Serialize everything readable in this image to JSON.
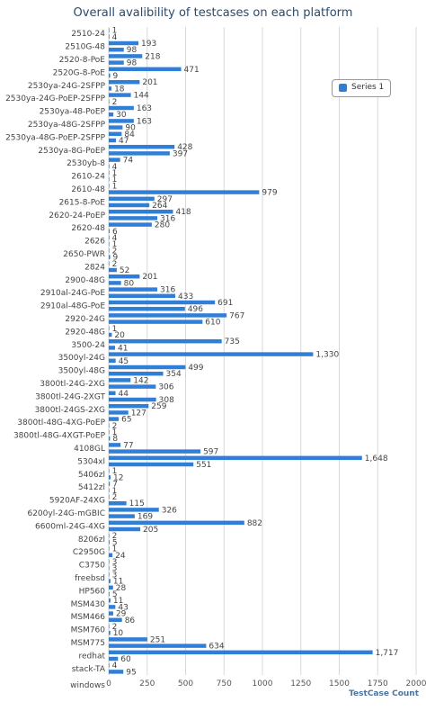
{
  "chart_data": {
    "type": "bar",
    "orientation": "horizontal",
    "title": "Overall avalibility of testcases on each platform",
    "xlabel": "TestCase Count",
    "xlim": [
      0,
      2000
    ],
    "x_ticks": [
      "0",
      "250",
      "500",
      "750",
      "1000",
      "1250",
      "1500",
      "1750",
      "2000"
    ],
    "grid": true,
    "legend_position": "top-right",
    "series": [
      {
        "name": "Series 1",
        "color": "#2f7ed8",
        "bars": [
          {
            "v": 1,
            "l": "1"
          },
          {
            "v": 4,
            "l": "4"
          },
          {
            "v": 193,
            "l": "193"
          },
          {
            "v": 98,
            "l": "98"
          },
          {
            "v": 218,
            "l": "218"
          },
          {
            "v": 98,
            "l": "98"
          },
          {
            "v": 471,
            "l": "471"
          },
          {
            "v": 9,
            "l": "9"
          },
          {
            "v": 201,
            "l": "201"
          },
          {
            "v": 18,
            "l": "18"
          },
          {
            "v": 144,
            "l": "144"
          },
          {
            "v": 2,
            "l": "2"
          },
          {
            "v": 163,
            "l": "163"
          },
          {
            "v": 30,
            "l": "30"
          },
          {
            "v": 163,
            "l": "163"
          },
          {
            "v": 90,
            "l": "90"
          },
          {
            "v": 84,
            "l": "84"
          },
          {
            "v": 47,
            "l": "47"
          },
          {
            "v": 428,
            "l": "428"
          },
          {
            "v": 397,
            "l": "397"
          },
          {
            "v": 74,
            "l": "74"
          },
          {
            "v": 4,
            "l": "4"
          },
          {
            "v": 1,
            "l": "1"
          },
          {
            "v": 1,
            "l": "1"
          },
          {
            "v": 1,
            "l": "1"
          },
          {
            "v": 979,
            "l": "979"
          },
          {
            "v": 297,
            "l": "297"
          },
          {
            "v": 264,
            "l": "264"
          },
          {
            "v": 418,
            "l": "418"
          },
          {
            "v": 316,
            "l": "316"
          },
          {
            "v": 280,
            "l": "280"
          },
          {
            "v": 6,
            "l": "6"
          },
          {
            "v": 4,
            "l": "4"
          },
          {
            "v": 1,
            "l": "1"
          },
          {
            "v": 2,
            "l": "2"
          },
          {
            "v": 9,
            "l": "9"
          },
          {
            "v": 2,
            "l": "2"
          },
          {
            "v": 52,
            "l": "52"
          },
          {
            "v": 201,
            "l": "201"
          },
          {
            "v": 80,
            "l": "80"
          },
          {
            "v": 316,
            "l": "316"
          },
          {
            "v": 433,
            "l": "433"
          },
          {
            "v": 691,
            "l": "691"
          },
          {
            "v": 496,
            "l": "496"
          },
          {
            "v": 767,
            "l": "767"
          },
          {
            "v": 610,
            "l": "610"
          },
          {
            "v": 1,
            "l": "1"
          },
          {
            "v": 20,
            "l": "20"
          },
          {
            "v": 735,
            "l": "735"
          },
          {
            "v": 41,
            "l": "41"
          },
          {
            "v": 1330,
            "l": "1,330"
          },
          {
            "v": 45,
            "l": "45"
          },
          {
            "v": 499,
            "l": "499"
          },
          {
            "v": 354,
            "l": "354"
          },
          {
            "v": 142,
            "l": "142"
          },
          {
            "v": 306,
            "l": "306"
          },
          {
            "v": 44,
            "l": "44"
          },
          {
            "v": 308,
            "l": "308"
          },
          {
            "v": 259,
            "l": "259"
          },
          {
            "v": 127,
            "l": "127"
          },
          {
            "v": 65,
            "l": "65"
          },
          {
            "v": 2,
            "l": "2"
          },
          {
            "v": 1,
            "l": "1"
          },
          {
            "v": 8,
            "l": "8"
          },
          {
            "v": 77,
            "l": "77"
          },
          {
            "v": 597,
            "l": "597"
          },
          {
            "v": 1648,
            "l": "1,648"
          },
          {
            "v": 551,
            "l": "551"
          },
          {
            "v": 1,
            "l": "1"
          },
          {
            "v": 12,
            "l": "12"
          },
          {
            "v": 7,
            "l": "7"
          },
          {
            "v": 1,
            "l": "1"
          },
          {
            "v": 2,
            "l": "2"
          },
          {
            "v": 115,
            "l": "115"
          },
          {
            "v": 326,
            "l": "326"
          },
          {
            "v": 169,
            "l": "169"
          },
          {
            "v": 882,
            "l": "882"
          },
          {
            "v": 205,
            "l": "205"
          },
          {
            "v": 2,
            "l": "2"
          },
          {
            "v": 5,
            "l": "5"
          },
          {
            "v": 1,
            "l": "1"
          },
          {
            "v": 24,
            "l": "24"
          },
          {
            "v": 3,
            "l": "3"
          },
          {
            "v": 3,
            "l": "3"
          },
          {
            "v": 3,
            "l": "3"
          },
          {
            "v": 11,
            "l": "11"
          },
          {
            "v": 28,
            "l": "28"
          },
          {
            "v": 5,
            "l": "5"
          },
          {
            "v": 11,
            "l": "11"
          },
          {
            "v": 43,
            "l": "43"
          },
          {
            "v": 29,
            "l": "29"
          },
          {
            "v": 86,
            "l": "86"
          },
          {
            "v": 2,
            "l": "2"
          },
          {
            "v": 10,
            "l": "10"
          },
          {
            "v": 251,
            "l": "251"
          },
          {
            "v": 634,
            "l": "634"
          },
          {
            "v": 1717,
            "l": "1,717"
          },
          {
            "v": 60,
            "l": "60"
          },
          {
            "v": 4,
            "l": "4"
          },
          {
            "v": 95,
            "l": "95"
          }
        ]
      }
    ],
    "categories": [
      {
        "label": "2510-24",
        "n": 2
      },
      {
        "label": "2510G-48",
        "n": 2
      },
      {
        "label": "2520-8-PoE",
        "n": 2
      },
      {
        "label": "2520G-8-PoE",
        "n": 2
      },
      {
        "label": "2530ya-24G-2SFPP",
        "n": 2
      },
      {
        "label": "2530ya-24G-PoEP-2SFPP",
        "n": 2
      },
      {
        "label": "2530ya-48-PoEP",
        "n": 2
      },
      {
        "label": "2530ya-48G-2SFPP",
        "n": 2
      },
      {
        "label": "2530ya-48G-PoEP-2SFPP",
        "n": 2
      },
      {
        "label": "2530ya-8G-PoEP",
        "n": 2
      },
      {
        "label": "2530yb-8",
        "n": 2
      },
      {
        "label": "2610-24",
        "n": 2
      },
      {
        "label": "2610-48",
        "n": 2
      },
      {
        "label": "2615-8-PoE",
        "n": 2
      },
      {
        "label": "2620-24-PoEP",
        "n": 2
      },
      {
        "label": "2620-48",
        "n": 2
      },
      {
        "label": "2626",
        "n": 2
      },
      {
        "label": "2650-PWR",
        "n": 2
      },
      {
        "label": "2824",
        "n": 2
      },
      {
        "label": "2900-48G",
        "n": 2
      },
      {
        "label": "2910al-24G-PoE",
        "n": 2
      },
      {
        "label": "2910al-48G-PoE",
        "n": 2
      },
      {
        "label": "2920-24G",
        "n": 2
      },
      {
        "label": "2920-48G",
        "n": 2
      },
      {
        "label": "3500-24",
        "n": 2
      },
      {
        "label": "3500yl-24G",
        "n": 2
      },
      {
        "label": "3500yl-48G",
        "n": 2
      },
      {
        "label": "3800tl-24G-2XG",
        "n": 2
      },
      {
        "label": "3800tl-24G-2XGT",
        "n": 2
      },
      {
        "label": "3800tl-24GS-2XG",
        "n": 2
      },
      {
        "label": "3800tl-48G-4XG-PoEP",
        "n": 2
      },
      {
        "label": "3800tl-48G-4XGT-PoEP",
        "n": 2
      },
      {
        "label": "4108GL",
        "n": 2
      },
      {
        "label": "5304xl",
        "n": 2
      },
      {
        "label": "5406zl",
        "n": 2
      },
      {
        "label": "5412zl",
        "n": 2
      },
      {
        "label": "5920AF-24XG",
        "n": 2
      },
      {
        "label": "6200yl-24G-mGBIC",
        "n": 2
      },
      {
        "label": "6600ml-24G-4XG",
        "n": 2
      },
      {
        "label": "8206zl",
        "n": 2
      },
      {
        "label": "C2950G",
        "n": 2
      },
      {
        "label": "C3750",
        "n": 2
      },
      {
        "label": "freebsd",
        "n": 2
      },
      {
        "label": "HP560",
        "n": 2
      },
      {
        "label": "MSM430",
        "n": 2
      },
      {
        "label": "MSM466",
        "n": 2
      },
      {
        "label": "MSM760",
        "n": 2
      },
      {
        "label": "MSM775",
        "n": 2
      },
      {
        "label": "redhat",
        "n": 2
      },
      {
        "label": "stack-TA",
        "n": 2
      },
      {
        "label": "windows",
        "n": 3
      }
    ]
  }
}
